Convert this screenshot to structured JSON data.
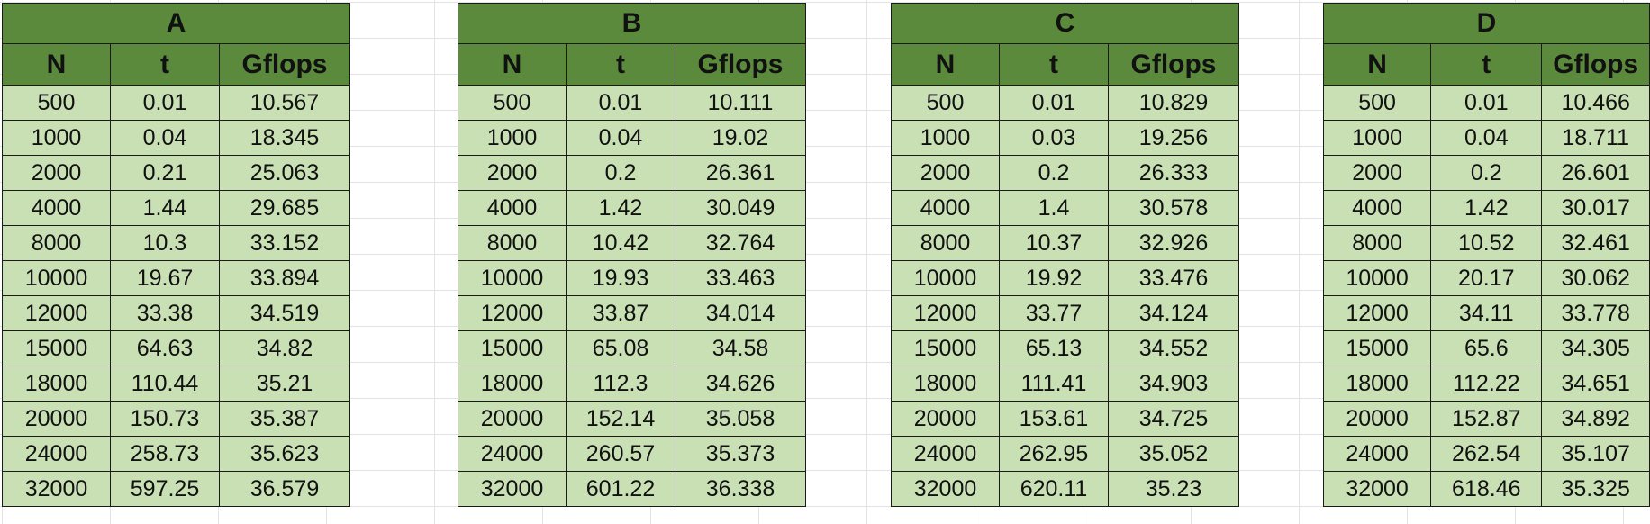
{
  "tables": [
    {
      "name": "A",
      "headers": [
        "N",
        "t",
        "Gflops"
      ],
      "rows": [
        [
          "500",
          "0.01",
          "10.567"
        ],
        [
          "1000",
          "0.04",
          "18.345"
        ],
        [
          "2000",
          "0.21",
          "25.063"
        ],
        [
          "4000",
          "1.44",
          "29.685"
        ],
        [
          "8000",
          "10.3",
          "33.152"
        ],
        [
          "10000",
          "19.67",
          "33.894"
        ],
        [
          "12000",
          "33.38",
          "34.519"
        ],
        [
          "15000",
          "64.63",
          "34.82"
        ],
        [
          "18000",
          "110.44",
          "35.21"
        ],
        [
          "20000",
          "150.73",
          "35.387"
        ],
        [
          "24000",
          "258.73",
          "35.623"
        ],
        [
          "32000",
          "597.25",
          "36.579"
        ]
      ]
    },
    {
      "name": "B",
      "headers": [
        "N",
        "t",
        "Gflops"
      ],
      "rows": [
        [
          "500",
          "0.01",
          "10.111"
        ],
        [
          "1000",
          "0.04",
          "19.02"
        ],
        [
          "2000",
          "0.2",
          "26.361"
        ],
        [
          "4000",
          "1.42",
          "30.049"
        ],
        [
          "8000",
          "10.42",
          "32.764"
        ],
        [
          "10000",
          "19.93",
          "33.463"
        ],
        [
          "12000",
          "33.87",
          "34.014"
        ],
        [
          "15000",
          "65.08",
          "34.58"
        ],
        [
          "18000",
          "112.3",
          "34.626"
        ],
        [
          "20000",
          "152.14",
          "35.058"
        ],
        [
          "24000",
          "260.57",
          "35.373"
        ],
        [
          "32000",
          "601.22",
          "36.338"
        ]
      ]
    },
    {
      "name": "C",
      "headers": [
        "N",
        "t",
        "Gflops"
      ],
      "rows": [
        [
          "500",
          "0.01",
          "10.829"
        ],
        [
          "1000",
          "0.03",
          "19.256"
        ],
        [
          "2000",
          "0.2",
          "26.333"
        ],
        [
          "4000",
          "1.4",
          "30.578"
        ],
        [
          "8000",
          "10.37",
          "32.926"
        ],
        [
          "10000",
          "19.92",
          "33.476"
        ],
        [
          "12000",
          "33.77",
          "34.124"
        ],
        [
          "15000",
          "65.13",
          "34.552"
        ],
        [
          "18000",
          "111.41",
          "34.903"
        ],
        [
          "20000",
          "153.61",
          "34.725"
        ],
        [
          "24000",
          "262.95",
          "35.052"
        ],
        [
          "32000",
          "620.11",
          "35.23"
        ]
      ]
    },
    {
      "name": "D",
      "headers": [
        "N",
        "t",
        "Gflops"
      ],
      "rows": [
        [
          "500",
          "0.01",
          "10.466"
        ],
        [
          "1000",
          "0.04",
          "18.711"
        ],
        [
          "2000",
          "0.2",
          "26.601"
        ],
        [
          "4000",
          "1.42",
          "30.017"
        ],
        [
          "8000",
          "10.52",
          "32.461"
        ],
        [
          "10000",
          "20.17",
          "30.062"
        ],
        [
          "12000",
          "34.11",
          "33.778"
        ],
        [
          "15000",
          "65.6",
          "34.305"
        ],
        [
          "18000",
          "112.22",
          "34.651"
        ],
        [
          "20000",
          "152.87",
          "34.892"
        ],
        [
          "24000",
          "262.54",
          "35.107"
        ],
        [
          "32000",
          "618.46",
          "35.325"
        ]
      ]
    }
  ],
  "colors": {
    "header_bg": "#5b8a3d",
    "cell_bg": "#c9e0b5",
    "border": "#1a1a1a"
  }
}
